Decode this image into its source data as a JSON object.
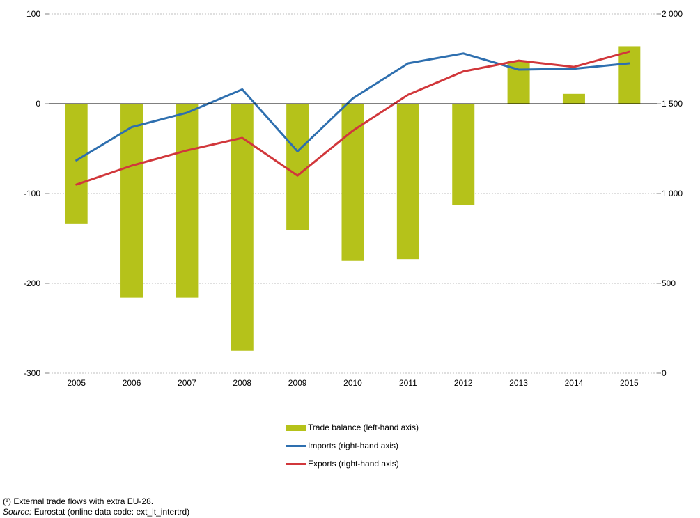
{
  "chart_data": {
    "type": "bar+line",
    "categories": [
      "2005",
      "2006",
      "2007",
      "2008",
      "2009",
      "2010",
      "2011",
      "2012",
      "2013",
      "2014",
      "2015"
    ],
    "left_axis": {
      "range": [
        -300,
        100
      ],
      "ticks": [
        "100",
        "0",
        "-100",
        "-200",
        "-300"
      ],
      "tick_values": [
        100,
        0,
        -100,
        -200,
        -300
      ]
    },
    "right_axis": {
      "range": [
        0,
        2000
      ],
      "ticks": [
        "2 000",
        "1 500",
        "1 000",
        "500",
        "0"
      ],
      "tick_values": [
        2000,
        1500,
        1000,
        500,
        0
      ]
    },
    "grid": true,
    "series": [
      {
        "name": "Trade balance (left-hand axis)",
        "type": "bar",
        "axis": "left",
        "color": "#b5c21a",
        "values": [
          -134,
          -216,
          -216,
          -275,
          -141,
          -175,
          -173,
          -113,
          48,
          11,
          64
        ]
      },
      {
        "name": "Imports (right-hand axis)",
        "type": "line",
        "axis": "right",
        "color": "#2e6faf",
        "values": [
          1185,
          1370,
          1450,
          1580,
          1235,
          1530,
          1725,
          1780,
          1690,
          1695,
          1725
        ]
      },
      {
        "name": "Exports (right-hand axis)",
        "type": "line",
        "axis": "right",
        "color": "#d1373b",
        "values": [
          1050,
          1155,
          1240,
          1310,
          1100,
          1350,
          1550,
          1680,
          1740,
          1705,
          1790
        ]
      }
    ],
    "legend_position": "bottom-center"
  },
  "legend": {
    "bar_label": "Trade balance (left-hand axis)",
    "imports_label": "Imports (right-hand axis)",
    "exports_label": "Exports (right-hand axis)"
  },
  "footnotes": {
    "note": "(¹) External trade flows with extra EU-28.",
    "source_label": "Source:",
    "source_text": " Eurostat (online data code: ext_lt_intertrd)"
  },
  "colors": {
    "bar": "#b5c21a",
    "imports": "#2e6faf",
    "exports": "#d1373b",
    "grid": "#bfbfbf",
    "axis": "#808080"
  }
}
